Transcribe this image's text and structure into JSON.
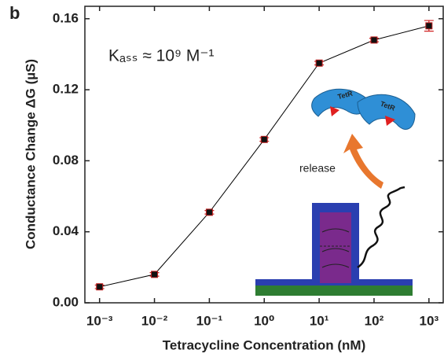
{
  "chart_data": {
    "type": "line",
    "panel_label": "b",
    "annotation": "Kₐₛₛ ≈ 10⁹ M⁻¹",
    "x_label": "Tetracycline Concentration (nM)",
    "y_label": "Conductance Change ΔG (µS)",
    "x": [
      0.001,
      0.01,
      0.1,
      1,
      10,
      100,
      1000
    ],
    "series": [
      {
        "color": "#000000",
        "values": [
          0.009,
          0.016,
          0.051,
          0.092,
          0.135,
          0.148,
          0.156
        ],
        "errors": [
          0.001,
          0.001,
          0.001,
          0.001,
          0.001,
          0.001,
          0.003
        ]
      }
    ],
    "xlog": true,
    "xlim": [
      0.00054,
      1820
    ],
    "ylim": [
      0,
      0.167
    ],
    "xticks": [
      {
        "value": 0.001,
        "label": "10⁻³"
      },
      {
        "value": 0.01,
        "label": "10⁻²"
      },
      {
        "value": 0.1,
        "label": "10⁻¹"
      },
      {
        "value": 1,
        "label": "10⁰"
      },
      {
        "value": 10,
        "label": "10¹"
      },
      {
        "value": 100,
        "label": "10²"
      },
      {
        "value": 1000,
        "label": "10³"
      }
    ],
    "yticks": [
      {
        "value": 0,
        "label": "0.00"
      },
      {
        "value": 0.04,
        "label": "0.04"
      },
      {
        "value": 0.08,
        "label": "0.08"
      },
      {
        "value": 0.12,
        "label": "0.12"
      },
      {
        "value": 0.16,
        "label": "0.16"
      }
    ],
    "inset_labels": [
      "release",
      "TetR",
      "TetR"
    ]
  }
}
